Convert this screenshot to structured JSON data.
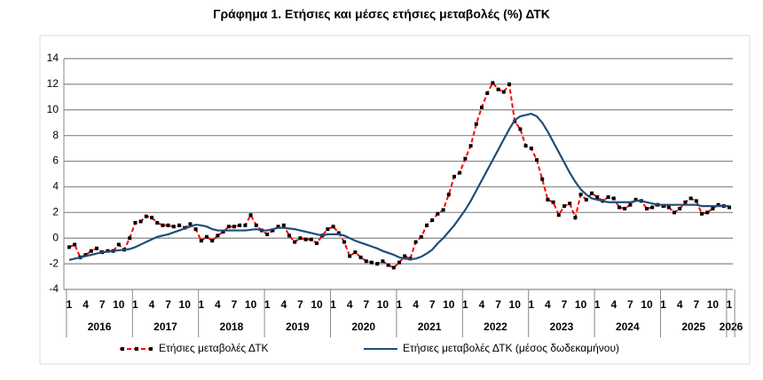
{
  "chart_data": {
    "type": "line",
    "title": "Γράφημα 1. Ετήσιες και μέσες ετήσιες μεταβολές (%) ΔΤΚ",
    "categories": [
      "1",
      null,
      null,
      "4",
      null,
      null,
      "7",
      null,
      null,
      "10",
      null,
      null,
      "1",
      null,
      null,
      "4",
      null,
      null,
      "7",
      null,
      null,
      "10",
      null,
      null,
      "1",
      null,
      null,
      "4",
      null,
      null,
      "7",
      null,
      null,
      "10",
      null,
      null,
      "1",
      null,
      null,
      "4",
      null,
      null,
      "7",
      null,
      null,
      "10",
      null,
      null,
      "1",
      null,
      null,
      "4",
      null,
      null,
      "7",
      null,
      null,
      "10",
      null,
      null,
      "1",
      null,
      null,
      "4",
      null,
      null,
      "7",
      null,
      null,
      "10",
      null,
      null,
      "1",
      null,
      null,
      "4",
      null,
      null,
      "7",
      null,
      null,
      "10",
      null,
      null,
      "1",
      null,
      null,
      "4",
      null,
      null,
      "7",
      null,
      null,
      "10",
      null,
      null,
      "1",
      null,
      null,
      "4",
      null,
      null,
      "7",
      null,
      null,
      "10",
      null,
      null,
      "1",
      null,
      null,
      "4",
      null,
      null,
      "7",
      null,
      null,
      "10",
      null,
      null,
      "1"
    ],
    "years": [
      "2016",
      "2017",
      "2018",
      "2019",
      "2020",
      "2021",
      "2022",
      "2023",
      "2024",
      "2025",
      "2026"
    ],
    "ylim": [
      -4,
      14
    ],
    "yticks": [
      -4,
      -2,
      0,
      2,
      4,
      6,
      8,
      10,
      12,
      14
    ],
    "grid": true,
    "legend": "bottom",
    "series": [
      {
        "name": "Ετήσιες μεταβολές ΔΤΚ",
        "color": "#ff0000",
        "marker_color": "#000000",
        "dashed": true,
        "values": [
          -0.7,
          -0.5,
          -1.5,
          -1.3,
          -1.0,
          -0.8,
          -1.1,
          -1.0,
          -1.0,
          -0.5,
          -0.9,
          0.0,
          1.2,
          1.3,
          1.7,
          1.6,
          1.2,
          1.0,
          1.0,
          0.9,
          1.0,
          0.8,
          1.1,
          0.7,
          -0.2,
          0.1,
          -0.2,
          0.2,
          0.5,
          0.9,
          0.9,
          1.0,
          1.0,
          1.8,
          1.0,
          0.6,
          0.3,
          0.6,
          0.9,
          1.0,
          0.2,
          -0.3,
          0.0,
          -0.1,
          -0.1,
          -0.4,
          0.2,
          0.7,
          0.9,
          0.4,
          -0.3,
          -1.4,
          -1.1,
          -1.5,
          -1.8,
          -1.9,
          -2.0,
          -1.8,
          -2.1,
          -2.3,
          -1.9,
          -1.4,
          -1.6,
          -0.3,
          0.1,
          1.0,
          1.4,
          1.9,
          2.2,
          3.4,
          4.8,
          5.1,
          6.2,
          7.2,
          8.9,
          10.2,
          11.3,
          12.1,
          11.6,
          11.4,
          12.0,
          9.1,
          8.5,
          7.2,
          7.0,
          6.1,
          4.6,
          3.0,
          2.8,
          1.8,
          2.5,
          2.7,
          1.6,
          3.4,
          3.0,
          3.5,
          3.2,
          2.9,
          3.2,
          3.1,
          2.4,
          2.3,
          2.6,
          3.0,
          2.9,
          2.3,
          2.4,
          2.6,
          2.5,
          2.4,
          2.0,
          2.3,
          2.8,
          3.1,
          2.9,
          1.9,
          2.0,
          2.3,
          2.6,
          2.5,
          2.4
        ]
      },
      {
        "name": "Ετήσιες μεταβολές ΔΤΚ (μέσος δωδεκαμήνου)",
        "color": "#1f4e79",
        "dashed": false,
        "values": [
          -1.7,
          -1.6,
          -1.5,
          -1.4,
          -1.3,
          -1.2,
          -1.1,
          -1.05,
          -1.0,
          -0.95,
          -0.9,
          -0.85,
          -0.7,
          -0.5,
          -0.3,
          -0.1,
          0.1,
          0.2,
          0.3,
          0.45,
          0.6,
          0.75,
          0.9,
          1.05,
          1.0,
          0.9,
          0.7,
          0.6,
          0.6,
          0.6,
          0.6,
          0.6,
          0.6,
          0.65,
          0.7,
          0.6,
          0.6,
          0.7,
          0.8,
          0.8,
          0.75,
          0.7,
          0.6,
          0.5,
          0.4,
          0.3,
          0.2,
          0.3,
          0.3,
          0.3,
          0.2,
          0.0,
          -0.2,
          -0.35,
          -0.5,
          -0.65,
          -0.8,
          -1.0,
          -1.15,
          -1.3,
          -1.5,
          -1.6,
          -1.65,
          -1.6,
          -1.45,
          -1.2,
          -0.9,
          -0.4,
          0.0,
          0.5,
          1.0,
          1.6,
          2.2,
          2.9,
          3.7,
          4.5,
          5.3,
          6.1,
          6.9,
          7.7,
          8.5,
          9.2,
          9.5,
          9.6,
          9.7,
          9.5,
          9.0,
          8.3,
          7.5,
          6.7,
          5.9,
          5.1,
          4.4,
          3.8,
          3.4,
          3.1,
          3.0,
          2.9,
          2.8,
          2.8,
          2.8,
          2.8,
          2.8,
          2.9,
          2.9,
          2.8,
          2.7,
          2.6,
          2.6,
          2.6,
          2.6,
          2.6,
          2.6,
          2.6,
          2.6,
          2.5,
          2.5,
          2.5,
          2.5,
          2.5,
          2.5
        ]
      }
    ]
  }
}
